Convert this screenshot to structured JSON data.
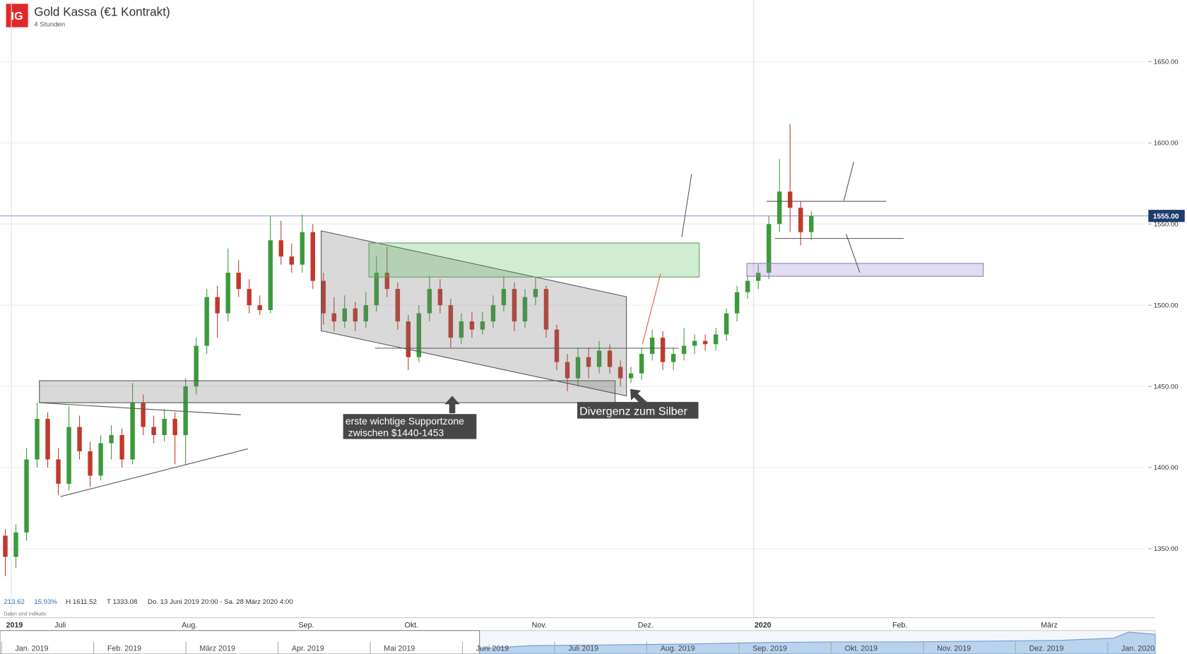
{
  "chart_data": {
    "type": "candlestick",
    "title": "Gold Kassa (€1 Kontrakt)",
    "subtitle": "4 Stunden",
    "logo": "IG",
    "categories": [
      null,
      "2019",
      null,
      null,
      null,
      "Juli",
      null,
      null,
      null,
      null,
      null,
      null,
      null,
      null,
      null,
      null,
      null,
      "Aug.",
      null,
      null,
      null,
      null,
      null,
      null,
      null,
      null,
      null,
      null,
      "Sep.",
      null,
      null,
      null,
      null,
      null,
      null,
      null,
      null,
      null,
      "Okt.",
      null,
      null,
      null,
      null,
      null,
      null,
      null,
      null,
      null,
      null,
      null,
      "Nov.",
      null,
      null,
      null,
      null,
      null,
      null,
      null,
      null,
      null,
      "Dez.",
      null,
      null,
      null,
      null,
      null,
      null,
      null,
      null,
      null,
      null,
      "2020",
      null,
      null,
      null,
      null,
      null,
      null,
      null,
      null,
      null,
      null,
      null,
      null,
      "Feb.",
      null,
      null,
      null,
      null,
      null,
      null,
      null,
      null,
      null,
      null,
      null,
      null,
      null,
      "März",
      null,
      null,
      null,
      null,
      null,
      null,
      null,
      null,
      null
    ],
    "open": [
      1358,
      1345,
      1360,
      1405,
      1430,
      1405,
      1390,
      1425,
      1410,
      1395,
      1415,
      1420,
      1405,
      1440,
      1425,
      1420,
      1430,
      1420,
      1450,
      1475,
      1505,
      1495,
      1520,
      1510,
      1500,
      1497,
      1540,
      1530,
      1525,
      1545,
      1515,
      1495,
      1490,
      1498,
      1490,
      1500,
      1520,
      1510,
      1490,
      1468,
      1495,
      1510,
      1500,
      1480,
      1490,
      1485,
      1490,
      1500,
      1510,
      1490,
      1505,
      1510,
      1485,
      1465,
      1455,
      1468,
      1462,
      1472,
      1462,
      1455,
      1458,
      1470,
      1480,
      1465,
      1470,
      1475,
      1478,
      1476,
      1482,
      1495,
      1508,
      1515,
      1520,
      1550,
      1570,
      1560,
      1545,
      null,
      null,
      null,
      null,
      null,
      null,
      null,
      null,
      null,
      null,
      null,
      null,
      null,
      null,
      null,
      null,
      null,
      null,
      null,
      null,
      null,
      null,
      null,
      null,
      null,
      null,
      null,
      null,
      null,
      null,
      null
    ],
    "high": [
      1362,
      1365,
      1412,
      1440,
      1434,
      1412,
      1438,
      1432,
      1416,
      1420,
      1426,
      1424,
      1452,
      1445,
      1432,
      1436,
      1434,
      1455,
      1480,
      1510,
      1512,
      1535,
      1528,
      1516,
      1506,
      1555,
      1552,
      1538,
      1556,
      1550,
      1520,
      1505,
      1506,
      1502,
      1508,
      1530,
      1536,
      1514,
      1494,
      1500,
      1518,
      1516,
      1504,
      1495,
      1496,
      1496,
      1506,
      1518,
      1514,
      1510,
      1517,
      1512,
      1488,
      1470,
      1474,
      1474,
      1478,
      1476,
      1466,
      1462,
      1474,
      1485,
      1484,
      1474,
      1486,
      1482,
      1482,
      1486,
      1498,
      1512,
      1518,
      1525,
      1555,
      1590,
      1611.52,
      1564,
      1558,
      null,
      null,
      null,
      null,
      null,
      null,
      null,
      null,
      null,
      null,
      null,
      null,
      null,
      null,
      null,
      null,
      null,
      null,
      null,
      null,
      null,
      null,
      null,
      null,
      null,
      null,
      null,
      null,
      null,
      null,
      null
    ],
    "low": [
      1333.08,
      1338,
      1355,
      1400,
      1400,
      1383,
      1386,
      1405,
      1388,
      1392,
      1405,
      1400,
      1402,
      1420,
      1415,
      1416,
      1402,
      1402,
      1445,
      1470,
      1480,
      1490,
      1505,
      1495,
      1494,
      1495,
      1525,
      1520,
      1520,
      1510,
      1488,
      1484,
      1486,
      1484,
      1486,
      1496,
      1505,
      1485,
      1460,
      1465,
      1490,
      1495,
      1474,
      1476,
      1480,
      1482,
      1486,
      1496,
      1484,
      1486,
      1500,
      1480,
      1460,
      1447,
      1450,
      1455,
      1458,
      1458,
      1450,
      1452,
      1454,
      1466,
      1460,
      1460,
      1466,
      1470,
      1472,
      1472,
      1478,
      1490,
      1504,
      1510,
      1516,
      1545,
      1545,
      1537,
      1540,
      null,
      null,
      null,
      null,
      null,
      null,
      null,
      null,
      null,
      null,
      null,
      null,
      null,
      null,
      null,
      null,
      null,
      null,
      null,
      null,
      null,
      null,
      null,
      null,
      null,
      null,
      null,
      null,
      null,
      null,
      null
    ],
    "close": [
      1345,
      1360,
      1405,
      1430,
      1405,
      1390,
      1425,
      1410,
      1395,
      1415,
      1420,
      1405,
      1440,
      1425,
      1420,
      1430,
      1420,
      1450,
      1475,
      1505,
      1495,
      1520,
      1510,
      1500,
      1497,
      1540,
      1530,
      1525,
      1545,
      1515,
      1495,
      1490,
      1498,
      1490,
      1500,
      1520,
      1510,
      1490,
      1468,
      1495,
      1510,
      1500,
      1480,
      1490,
      1485,
      1490,
      1500,
      1510,
      1490,
      1505,
      1510,
      1485,
      1465,
      1455,
      1468,
      1462,
      1472,
      1462,
      1455,
      1458,
      1470,
      1480,
      1465,
      1470,
      1475,
      1478,
      1476,
      1482,
      1495,
      1508,
      1515,
      1520,
      1550,
      1570,
      1560,
      1545,
      1555,
      null,
      null,
      null,
      null,
      null,
      null,
      null,
      null,
      null,
      null,
      null,
      null,
      null,
      null,
      null,
      null,
      null,
      null,
      null,
      null,
      null,
      null,
      null,
      null,
      null,
      null,
      null,
      null,
      null,
      null,
      null
    ],
    "up_color": "#3c9a3c",
    "down_color": "#c0392b",
    "ylim": [
      1308,
      1688
    ],
    "yticks": [
      {
        "value": 1350,
        "label": "1350.00"
      },
      {
        "value": 1400,
        "label": "1400.00"
      },
      {
        "value": 1450,
        "label": "1450.00"
      },
      {
        "value": 1500,
        "label": "1500.00"
      },
      {
        "value": 1550,
        "label": "1550.00"
      },
      {
        "value": 1600,
        "label": "1600.00"
      },
      {
        "value": 1650,
        "label": "1650.00"
      }
    ],
    "grid": true,
    "last_price": {
      "value": 1555,
      "label": "1555.00"
    },
    "info": [
      "213.62",
      "15.93%",
      "H 1611.52",
      "T 1333.08",
      "Do. 13 Juni 2019 20:00 - Sa. 28 März 2020 4:00"
    ],
    "disclaimer": "Daten sind indikativ",
    "annotations": [
      {
        "lines": [
          "erste wichtige Supportzone",
          " zwischen $1440-1453"
        ]
      },
      {
        "lines": [
          "Divergenz zum Silber"
        ]
      }
    ],
    "navigator_labels": [
      "Jan. 2019",
      "Feb. 2019",
      "März 2019",
      "Apr. 2019",
      "Mai 2019",
      "Juni 2019",
      "Juli 2019",
      "Aug. 2019",
      "Sep. 2019",
      "Okt. 2019",
      "Nov. 2019",
      "Dez. 2019",
      "Jan. 2020"
    ]
  }
}
